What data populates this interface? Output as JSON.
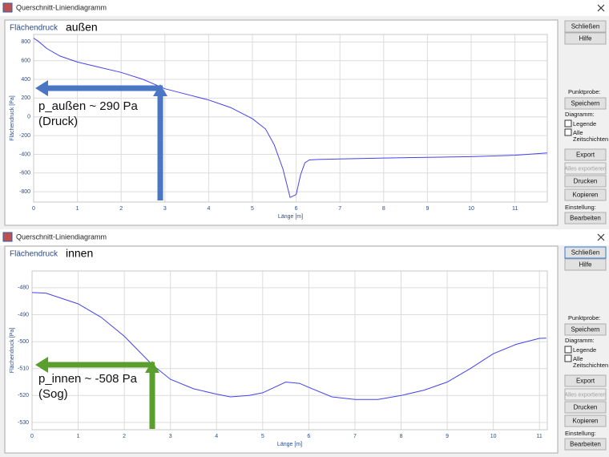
{
  "windows": [
    {
      "title": "Querschnitt-Liniendiagramm",
      "panel": {
        "close": "Schließen",
        "help": "Hilfe",
        "probe_label": "Punktprobe:",
        "save": "Speichern",
        "diagram_label": "Diagramm:",
        "legend": "Legende",
        "all_layers": [
          "Alle",
          "Zeitschichten"
        ],
        "export": "Export",
        "export_all": "Alles exportieren",
        "print": "Drucken",
        "copy": "Kopieren",
        "settings_label": "Einstellung:",
        "edit": "Bearbeiten"
      }
    },
    {
      "title": "Querschnitt-Liniendiagramm",
      "panel": {
        "close": "Schließen",
        "help": "Hilfe",
        "probe_label": "Punktprobe:",
        "save": "Speichern",
        "diagram_label": "Diagramm:",
        "legend": "Legende",
        "all_layers": [
          "Alle",
          "Zeitschichten"
        ],
        "export": "Export",
        "export_all": "Alles exportieren",
        "print": "Drucken",
        "copy": "Kopieren",
        "settings_label": "Einstellung:",
        "edit": "Bearbeiten"
      }
    }
  ],
  "chart_data": [
    {
      "type": "line",
      "title": "Flächendruck",
      "subtitle": "außen",
      "x_label": "Länge [m]",
      "y_label": "Flächendruck [Pa]",
      "x": [
        0,
        0.1,
        0.3,
        0.6,
        1,
        1.5,
        2,
        2.5,
        3,
        3.5,
        4,
        4.5,
        5,
        5.3,
        5.5,
        5.7,
        5.86,
        6.0,
        6.1,
        6.2,
        6.3,
        6.5,
        7,
        8,
        9,
        10,
        11,
        11.74
      ],
      "values": [
        840,
        810,
        730,
        650,
        585,
        530,
        475,
        400,
        300,
        240,
        180,
        100,
        -20,
        -130,
        -300,
        -560,
        -860,
        -830,
        -620,
        -490,
        -460,
        -455,
        -450,
        -440,
        -432,
        -425,
        -410,
        -385
      ],
      "color": "#4343f0",
      "xlim": [
        0,
        11.74
      ],
      "ylim": [
        -910,
        880
      ],
      "xticks": [
        0,
        1,
        2,
        3,
        4,
        5,
        6,
        7,
        8,
        9,
        10,
        11
      ],
      "yticks": [
        800,
        600,
        400,
        200,
        0,
        -200,
        -400,
        -600,
        -800
      ],
      "grid": true,
      "annotation": [
        "p_außen ~ 290 Pa",
        "(Druck)"
      ],
      "annotation_color": "#4a76c4"
    },
    {
      "type": "line",
      "title": "Flächendruck",
      "subtitle": "innen",
      "x_label": "Länge [m]",
      "y_label": "Flächendruck [Pa]",
      "x": [
        0,
        0.3,
        1,
        1.5,
        2,
        2.6,
        3,
        3.5,
        4,
        4.3,
        4.7,
        5,
        5.5,
        5.8,
        6,
        6.5,
        7,
        7.5,
        8,
        8.5,
        9,
        9.5,
        10,
        10.5,
        11,
        11.15
      ],
      "values": [
        -481.8,
        -482,
        -486,
        -491,
        -498,
        -508.5,
        -514,
        -517.5,
        -519.5,
        -520.5,
        -520,
        -519,
        -515,
        -515.5,
        -517,
        -520.5,
        -521.5,
        -521.5,
        -520,
        -518,
        -515,
        -510,
        -504.5,
        -501,
        -498.8,
        -498.7
      ],
      "color": "#4343f0",
      "xlim": [
        0,
        11.17
      ],
      "ylim": [
        -532.7,
        -473.8
      ],
      "xticks": [
        0,
        1,
        2,
        3,
        4,
        5,
        6,
        7,
        8,
        9,
        10,
        11
      ],
      "yticks": [
        -480,
        -490,
        -500,
        -510,
        -520,
        -530
      ],
      "grid": true,
      "annotation": [
        "p_innen ~ -508 Pa",
        "(Sog)"
      ],
      "annotation_color": "#5a9e2e"
    }
  ]
}
